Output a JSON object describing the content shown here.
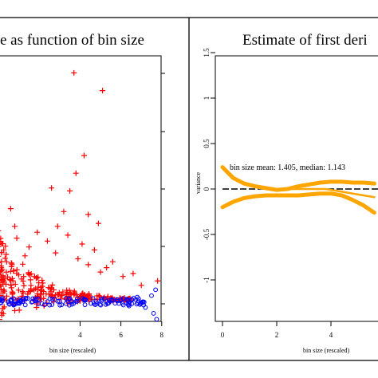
{
  "chart_data": [
    {
      "type": "scatter",
      "title": "e as function of bin size",
      "xlabel": "bin size (rescaled)",
      "ylabel": "",
      "xlim": [
        0,
        8
      ],
      "x_ticks": [
        "4",
        "6",
        "8"
      ],
      "grid": false,
      "series": [
        {
          "color": "#ff0000",
          "marker": "plus",
          "points": [
            [
              3.7,
              7.8
            ],
            [
              5.1,
              7.2
            ],
            [
              4.2,
              5.0
            ],
            [
              3.8,
              4.4
            ],
            [
              3.5,
              3.8
            ],
            [
              2.6,
              3.9
            ],
            [
              3.2,
              3.1
            ],
            [
              2.9,
              2.6
            ],
            [
              4.4,
              3.0
            ],
            [
              4.9,
              2.7
            ],
            [
              1.9,
              2.4
            ],
            [
              3.4,
              2.3
            ],
            [
              4.1,
              2.0
            ],
            [
              4.7,
              1.8
            ],
            [
              2.4,
              2.1
            ],
            [
              5.6,
              1.4
            ],
            [
              6.6,
              1.0
            ],
            [
              3.9,
              1.5
            ],
            [
              5.3,
              1.2
            ],
            [
              6.1,
              0.9
            ],
            [
              7.0,
              0.6
            ],
            [
              7.8,
              0.75
            ],
            [
              1.5,
              1.9
            ],
            [
              0.9,
              2.2
            ],
            [
              0.6,
              3.2
            ],
            [
              0.8,
              2.6
            ],
            [
              1.3,
              1.6
            ],
            [
              2.8,
              1.7
            ],
            [
              4.4,
              1.3
            ],
            [
              5.0,
              1.05
            ]
          ]
        },
        {
          "color": "#0000ff",
          "marker": "circle",
          "points": [
            [
              0.1,
              0.1
            ],
            [
              0.6,
              0.1
            ],
            [
              1.2,
              0.05
            ],
            [
              1.8,
              0.08
            ],
            [
              2.4,
              0.05
            ],
            [
              3.0,
              0.06
            ],
            [
              3.6,
              0.05
            ],
            [
              4.2,
              0.1
            ],
            [
              4.8,
              0.05
            ],
            [
              5.4,
              0.0
            ],
            [
              6.0,
              0.12
            ],
            [
              6.4,
              -0.1
            ],
            [
              6.8,
              0.2
            ],
            [
              7.2,
              -0.15
            ],
            [
              7.5,
              0.25
            ],
            [
              7.6,
              -0.35
            ],
            [
              7.7,
              0.45
            ],
            [
              7.75,
              -0.55
            ]
          ]
        }
      ]
    },
    {
      "type": "line",
      "title": "Estimate of first deri",
      "xlabel": "bin size (rescaled)",
      "ylabel": "variance",
      "xlim": [
        -0.3,
        5.8
      ],
      "ylim": [
        -1.5,
        1.5
      ],
      "x_ticks": [
        "0",
        "2",
        "4"
      ],
      "y_ticks": [
        "-1",
        "-0.5",
        "0",
        "0.5",
        "1",
        "1.5"
      ],
      "annotation": "bin size mean: 1.405, median: 1.143",
      "grid": false,
      "reference_line_y": 0,
      "series": [
        {
          "color": "#ffa500",
          "x": [
            0,
            0.4,
            0.8,
            1.2,
            1.6,
            2.0,
            2.4,
            2.8,
            3.2,
            3.6,
            4.0,
            4.4,
            4.8,
            5.2,
            5.6
          ],
          "y": [
            0.24,
            0.12,
            0.06,
            0.03,
            0.01,
            -0.01,
            0.0,
            0.03,
            0.05,
            0.07,
            0.08,
            0.08,
            0.07,
            0.07,
            0.06
          ]
        },
        {
          "color": "#ffa500",
          "x": [
            0,
            0.4,
            0.8,
            1.2,
            1.6,
            2.0,
            2.4,
            2.8,
            3.2,
            3.6,
            4.0,
            4.4,
            4.8,
            5.2,
            5.6
          ],
          "y": [
            -0.2,
            -0.14,
            -0.1,
            -0.08,
            -0.07,
            -0.07,
            -0.07,
            -0.07,
            -0.06,
            -0.05,
            -0.05,
            -0.07,
            -0.12,
            -0.18,
            -0.26
          ]
        },
        {
          "color": "#ffa500",
          "x": [
            2.2,
            3.0,
            3.8,
            4.4,
            5.0,
            5.6
          ],
          "y": [
            0.0,
            0.0,
            0.0,
            -0.03,
            -0.06,
            -0.09
          ]
        }
      ]
    }
  ]
}
